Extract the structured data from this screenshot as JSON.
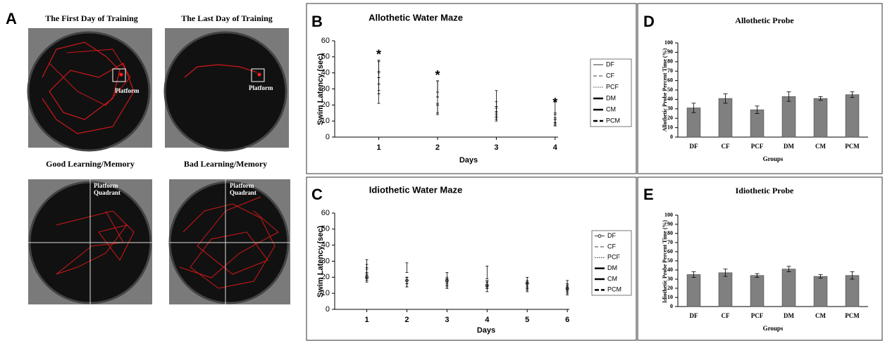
{
  "panel_a": {
    "panel_label": "A",
    "photos": [
      {
        "title": "The First Day of Training",
        "label": "Platform"
      },
      {
        "title": "The Last Day of Training",
        "label": "Platform"
      },
      {
        "title": "Good Learning/Memory",
        "label": "Platform Quadrant"
      },
      {
        "title": "Bad Learning/Memory",
        "label": "Platform Quadrant"
      }
    ]
  },
  "chart_data": [
    {
      "type": "line",
      "panel_label": "B",
      "title": "Allothetic Water Maze",
      "xlabel": "Days",
      "ylabel": "Swim Latency (sec)",
      "x": [
        1,
        2,
        3,
        4
      ],
      "xlim": [
        0.25,
        4.05
      ],
      "xticks": [
        1,
        2,
        3,
        4
      ],
      "ylim": [
        0,
        60
      ],
      "yticks": [
        0,
        10,
        20,
        30,
        40,
        50,
        60
      ],
      "series": [
        {
          "name": "DF",
          "color": "#000000",
          "dash": "solid",
          "width": 0.8,
          "values": [
            44,
            30,
            24,
            18
          ],
          "errors": [
            4,
            5,
            5,
            4
          ]
        },
        {
          "name": "CF",
          "color": "#000000",
          "dash": "dash",
          "width": 0.8,
          "values": [
            37,
            24,
            18,
            12
          ],
          "errors": [
            4,
            4,
            4,
            3
          ]
        },
        {
          "name": "PCF",
          "color": "#000000",
          "dash": "dot",
          "width": 0.8,
          "values": [
            33,
            18,
            15,
            10
          ],
          "errors": [
            4,
            3,
            3,
            2
          ]
        },
        {
          "name": "DM",
          "color": "#000000",
          "dash": "solid",
          "width": 2.5,
          "values": [
            42,
            30,
            13,
            9
          ],
          "errors": [
            5,
            5,
            3,
            2
          ]
        },
        {
          "name": "CM",
          "color": "#000000",
          "dash": "longdash",
          "width": 2.5,
          "values": [
            30,
            30,
            16,
            9
          ],
          "errors": [
            3,
            5,
            3,
            2
          ]
        },
        {
          "name": "PCM",
          "color": "#000000",
          "dash": "shortdash",
          "width": 2.5,
          "values": [
            24,
            17,
            13,
            8
          ],
          "errors": [
            3,
            3,
            2,
            1
          ]
        }
      ],
      "annotations": [
        {
          "text": "*",
          "x": 1,
          "y": 51
        },
        {
          "text": "*",
          "x": 2,
          "y": 38
        },
        {
          "text": "*",
          "x": 4,
          "y": 21
        }
      ]
    },
    {
      "type": "line",
      "panel_label": "C",
      "title": "Idiothetic Water Maze",
      "xlabel": "Days",
      "ylabel": "Swim Latency (sec)",
      "x": [
        1,
        2,
        3,
        4,
        5,
        6
      ],
      "xlim": [
        0.2,
        6.05
      ],
      "xticks": [
        1,
        2,
        3,
        4,
        5,
        6
      ],
      "ylim": [
        0,
        60
      ],
      "yticks": [
        0,
        10,
        20,
        30,
        40,
        50,
        60
      ],
      "series": [
        {
          "name": "DF",
          "color": "#000000",
          "dash": "solid",
          "width": 0.8,
          "marker": "circle",
          "values": [
            20,
            18,
            18,
            15,
            16,
            13
          ],
          "errors": [
            2,
            2,
            2,
            2,
            2,
            2
          ]
        },
        {
          "name": "CF",
          "color": "#000000",
          "dash": "dash",
          "width": 0.8,
          "values": [
            19,
            18,
            17,
            15,
            14,
            13
          ],
          "errors": [
            2,
            2,
            2,
            2,
            2,
            2
          ]
        },
        {
          "name": "PCF",
          "color": "#000000",
          "dash": "dot",
          "width": 0.8,
          "values": [
            22,
            18,
            17,
            16,
            15,
            12
          ],
          "errors": [
            3,
            2,
            2,
            2,
            2,
            2
          ]
        },
        {
          "name": "DM",
          "color": "#000000",
          "dash": "solid",
          "width": 2.5,
          "values": [
            27,
            17,
            20,
            23,
            14,
            15
          ],
          "errors": [
            4,
            3,
            3,
            4,
            3,
            3
          ]
        },
        {
          "name": "CM",
          "color": "#000000",
          "dash": "longdash",
          "width": 2.5,
          "values": [
            25,
            16,
            16,
            13,
            17,
            14
          ],
          "errors": [
            3,
            2,
            2,
            2,
            3,
            2
          ]
        },
        {
          "name": "PCM",
          "color": "#000000",
          "dash": "shortdash",
          "width": 2.5,
          "values": [
            23,
            26,
            15,
            16,
            15,
            11
          ],
          "errors": [
            3,
            3,
            2,
            2,
            2,
            2
          ]
        }
      ]
    },
    {
      "type": "bar",
      "panel_label": "D",
      "title": "Allothetic Probe",
      "xlabel": "Groups",
      "ylabel": "Allothetic Probe Percent Time (%)",
      "categories": [
        "DF",
        "CF",
        "PCF",
        "DM",
        "CM",
        "PCM"
      ],
      "values": [
        31,
        41,
        29,
        43,
        41,
        45
      ],
      "errors": [
        5,
        5,
        4,
        5,
        2,
        3
      ],
      "color": "#808080",
      "ylim": [
        0,
        100
      ],
      "yticks": [
        0,
        10,
        20,
        30,
        40,
        50,
        60,
        70,
        80,
        90,
        100
      ]
    },
    {
      "type": "bar",
      "panel_label": "E",
      "title": "Idiothetic Probe",
      "xlabel": "Groups",
      "ylabel": "Idiothetic Probe Percent Time (%)",
      "categories": [
        "DF",
        "CF",
        "PCF",
        "DM",
        "CM",
        "PCM"
      ],
      "values": [
        35,
        37,
        34,
        41,
        33,
        34
      ],
      "errors": [
        3,
        4,
        2,
        3,
        2,
        4
      ],
      "color": "#808080",
      "ylim": [
        0,
        100
      ],
      "yticks": [
        0,
        10,
        20,
        30,
        40,
        50,
        60,
        70,
        80,
        90,
        100
      ]
    }
  ]
}
